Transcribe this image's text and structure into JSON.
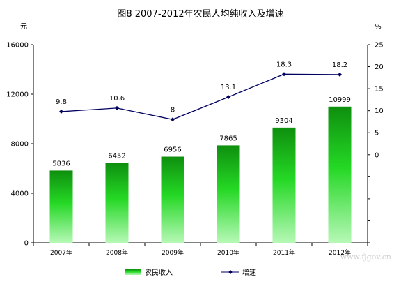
{
  "chart_data": {
    "type": "bar",
    "title": "图8 2007-2012年农民人均纯收入及增速",
    "ylabel_left": "元",
    "ylabel_right": "%",
    "categories": [
      "2007年",
      "2008年",
      "2009年",
      "2010年",
      "2011年",
      "2012年"
    ],
    "series": [
      {
        "name": "农民收入",
        "type": "bar",
        "axis": "left",
        "values": [
          5836,
          6452,
          6956,
          7865,
          9304,
          10999
        ]
      },
      {
        "name": "增速",
        "type": "line",
        "axis": "right",
        "values": [
          9.8,
          10.6,
          8,
          13.1,
          18.3,
          18.2
        ]
      }
    ],
    "ylim_left": [
      0,
      16000
    ],
    "yticks_left": [
      0,
      4000,
      8000,
      12000,
      16000
    ],
    "ylim_right": [
      -20,
      25
    ],
    "yticks_right_labeled": [
      0,
      5,
      10,
      15,
      20,
      25
    ],
    "grid": false,
    "legend_position": "bottom",
    "colors": {
      "bar_top": "#1fd81f",
      "bar_bottom": "#9cf59c",
      "bar_top_dark": "#0f9a0f",
      "line": "#000060",
      "marker": "#000060",
      "axis": "#000000"
    },
    "watermark": "www.fjgov.cn"
  }
}
